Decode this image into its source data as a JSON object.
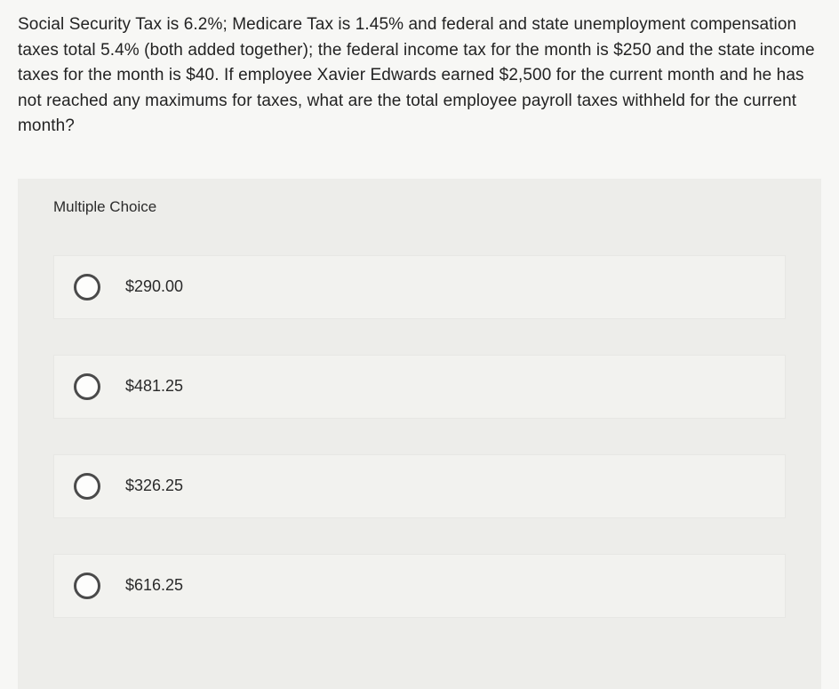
{
  "question": {
    "text": "Social Security Tax is 6.2%; Medicare Tax is 1.45% and federal and state unemployment compensation taxes total 5.4% (both added together); the federal income tax for the month is $250 and the state income taxes for the month is $40. If employee Xavier Edwards earned $2,500 for the current month and he has not reached any maximums for taxes, what are the total employee payroll taxes withheld for the current month?"
  },
  "section": {
    "heading": "Multiple Choice"
  },
  "choices": [
    {
      "label": "$290.00"
    },
    {
      "label": "$481.25"
    },
    {
      "label": "$326.25"
    },
    {
      "label": "$616.25"
    }
  ],
  "style": {
    "page_bg": "#f7f7f5",
    "block_bg": "#ededea",
    "choice_bg": "#f2f2ef",
    "text_color": "#1a1a1a",
    "radio_border": "#4a4a4a",
    "question_fontsize": 19,
    "heading_fontsize": 17,
    "choice_fontsize": 18
  }
}
